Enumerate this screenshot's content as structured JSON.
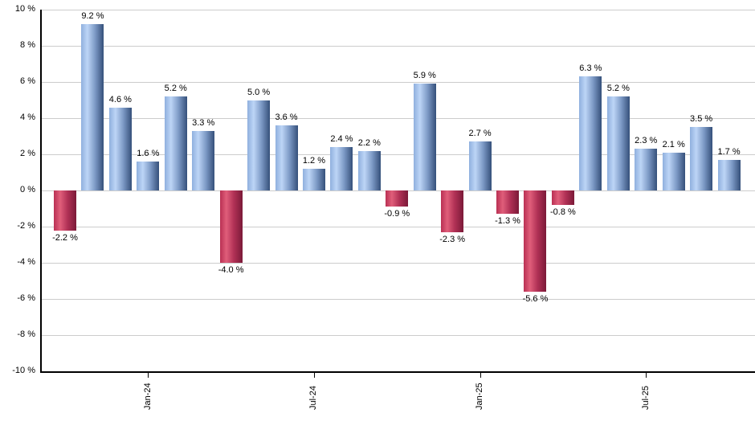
{
  "chart_data": {
    "type": "bar",
    "title": "",
    "xlabel": "",
    "ylabel": "",
    "ylim": [
      -10,
      10
    ],
    "grid": true,
    "legend": "none",
    "values": [
      -2.2,
      9.2,
      4.6,
      1.6,
      5.2,
      3.3,
      -4.0,
      5.0,
      3.6,
      1.2,
      2.4,
      2.2,
      -0.9,
      5.9,
      -2.3,
      2.7,
      -1.3,
      -5.6,
      -0.8,
      6.3,
      5.2,
      2.3,
      2.1,
      3.5,
      1.7
    ],
    "bar_labels": [
      "-2.2 %",
      "9.2 %",
      "4.6 %",
      "1.6 %",
      "5.2 %",
      "3.3 %",
      "-4.0 %",
      "5.0 %",
      "3.6 %",
      "1.2 %",
      "2.4 %",
      "2.2 %",
      "-0.9 %",
      "5.9 %",
      "-2.3 %",
      "2.7 %",
      "-1.3 %",
      "-5.6 %",
      "-0.8 %",
      "6.3 %",
      "5.2 %",
      "2.3 %",
      "2.1 %",
      "3.5 %",
      "1.7 %"
    ],
    "x_ticks": [
      {
        "bar_index": 3,
        "label": "Jan-24"
      },
      {
        "bar_index": 9,
        "label": "Jul-24"
      },
      {
        "bar_index": 15,
        "label": "Jan-25"
      },
      {
        "bar_index": 21,
        "label": "Jul-25"
      }
    ],
    "y_tick_labels": [
      "10 %",
      "8 %",
      "6 %",
      "4 %",
      "2 %",
      "0 %",
      "-2 %",
      "-4 %",
      "-6 %",
      "-8 %",
      "-10 %"
    ]
  },
  "colors": {
    "positive_gradient": [
      "#8fb0de",
      "#bdd5f6",
      "#7d9ac6",
      "#35507a"
    ],
    "negative_gradient": [
      "#b93053",
      "#e05e7a",
      "#b03055",
      "#7b1a38"
    ],
    "gridline": "#cccccc",
    "axis": "#000000",
    "text": "#000000",
    "background": "#ffffff"
  }
}
